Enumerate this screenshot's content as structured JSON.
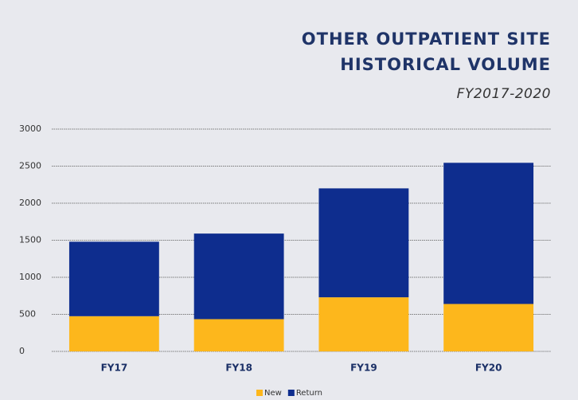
{
  "chart_data": {
    "type": "stacked_bar",
    "title": [
      "OTHER OUTPATIENT SITE",
      "HISTORICAL VOLUME"
    ],
    "subtitle": "FY2017-2020",
    "categories": [
      "FY17",
      "FY18",
      "FY19",
      "FY20"
    ],
    "series": [
      {
        "name": "New",
        "color": "#fdb71c",
        "values": [
          475,
          435,
          730,
          640
        ]
      },
      {
        "name": "Return",
        "color": "#0e2d8e",
        "values": [
          1005,
          1155,
          1470,
          1905
        ]
      }
    ],
    "ylim": [
      0,
      3000
    ],
    "yticks": [
      0,
      500,
      1000,
      1500,
      2000,
      2500,
      3000
    ],
    "grid": true,
    "legend": "bottom"
  }
}
